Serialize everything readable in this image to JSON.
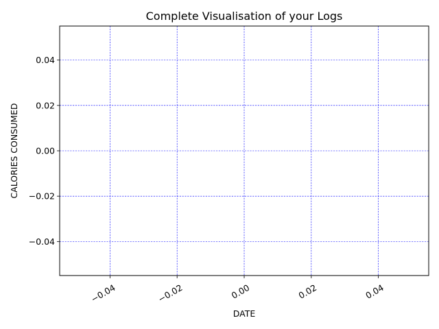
{
  "chart_data": {
    "type": "line",
    "title": "Complete Visualisation of your Logs",
    "xlabel": "DATE",
    "ylabel": "CALORIES CONSUMED",
    "x": [],
    "series": [
      {
        "values": []
      }
    ],
    "xlim": [
      -0.055,
      0.055
    ],
    "ylim": [
      -0.055,
      0.055
    ],
    "xticks": [
      -0.04,
      -0.02,
      0.0,
      0.02,
      0.04
    ],
    "xtick_labels": [
      "−0.04",
      "−0.02",
      "0.00",
      "0.02",
      "0.04"
    ],
    "yticks": [
      -0.04,
      -0.02,
      0.0,
      0.02,
      0.04
    ],
    "ytick_labels": [
      "−0.04",
      "−0.02",
      "0.00",
      "0.02",
      "0.04"
    ],
    "grid": true,
    "grid_color": "#0000ff",
    "grid_style": "dashed"
  }
}
